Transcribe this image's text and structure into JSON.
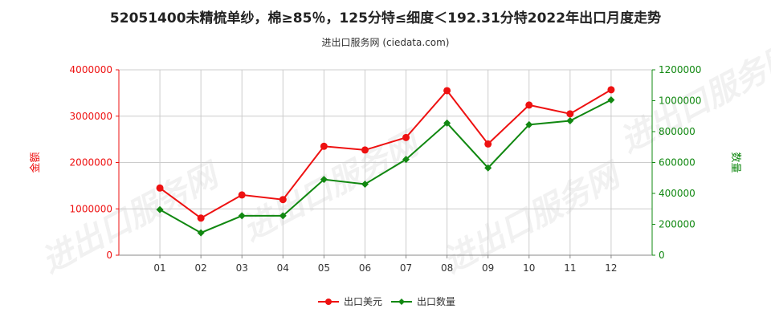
{
  "title": "52051400未精梳单纱，棉≥85％，125分特≤细度＜192.31分特2022年出口月度走势",
  "subtitle": "进出口服务网 (ciedata.com)",
  "watermark": "进出口服务网",
  "colors": {
    "usd": "#ee1111",
    "qty": "#118811",
    "grid": "#cccccc"
  },
  "chart_data": {
    "type": "line",
    "categories": [
      "01",
      "02",
      "03",
      "04",
      "05",
      "06",
      "07",
      "08",
      "09",
      "10",
      "11",
      "12"
    ],
    "y_left": {
      "label": "金额",
      "min": 0,
      "max": 4000000,
      "ticks": [
        "0",
        "1000000",
        "2000000",
        "3000000",
        "4000000"
      ]
    },
    "y_right": {
      "label": "数量",
      "min": 0,
      "max": 1200000,
      "ticks": [
        "0",
        "200000",
        "400000",
        "600000",
        "800000",
        "1000000",
        "1200000"
      ]
    },
    "series": [
      {
        "name": "出口美元",
        "axis": "left",
        "values": [
          1450000,
          800000,
          1300000,
          1200000,
          2350000,
          2270000,
          2540000,
          3550000,
          2400000,
          3240000,
          3050000,
          3570000
        ]
      },
      {
        "name": "出口数量",
        "axis": "right",
        "values": [
          295000,
          145000,
          255000,
          255000,
          490000,
          460000,
          620000,
          855000,
          565000,
          845000,
          870000,
          1005000
        ]
      }
    ],
    "grid": true,
    "legend": "bottom-center"
  }
}
